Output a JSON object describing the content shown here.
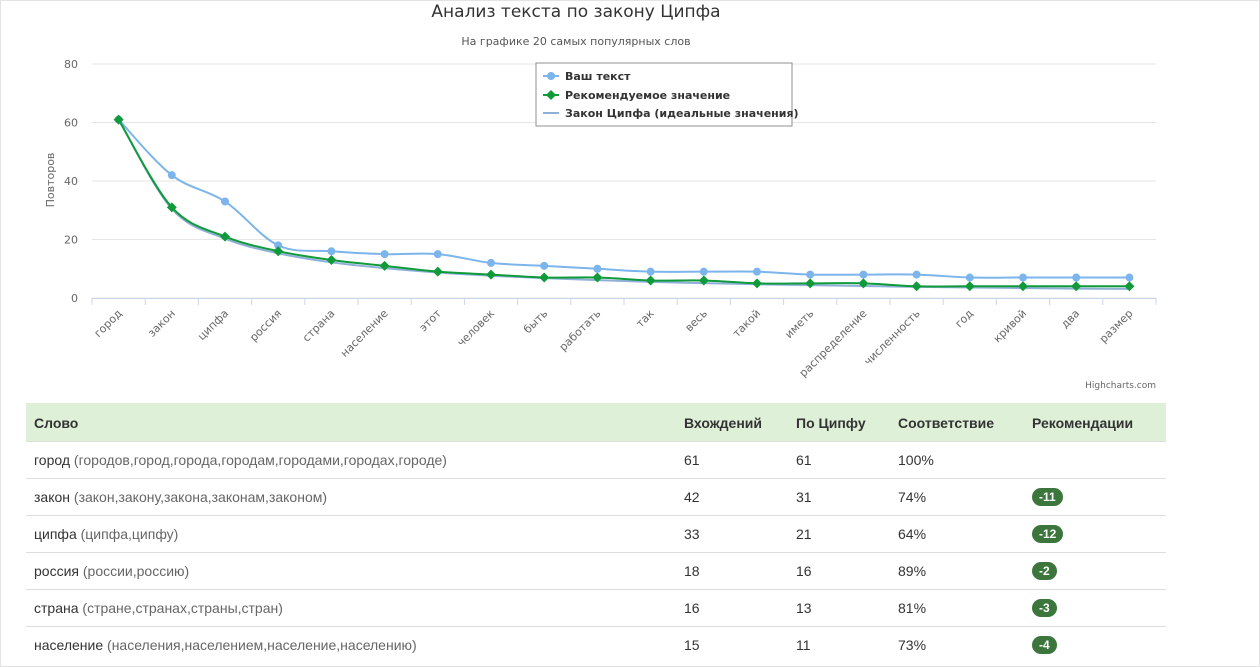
{
  "chart_data": {
    "type": "line",
    "title": "Анализ текста по закону Ципфа",
    "subtitle": "На графике 20 самых популярных слов",
    "ylabel": "Повторов",
    "ylim": [
      0,
      80
    ],
    "yticks": [
      0,
      20,
      40,
      60,
      80
    ],
    "grid": true,
    "legend_position": "top-center",
    "credits": "Highcharts.com",
    "categories": [
      "город",
      "закон",
      "ципфа",
      "россия",
      "страна",
      "население",
      "этот",
      "человек",
      "быть",
      "работать",
      "так",
      "весь",
      "такой",
      "иметь",
      "распределение",
      "численность",
      "год",
      "кривой",
      "два",
      "размер"
    ],
    "series": [
      {
        "name": "Ваш текст",
        "color": "#7cb5ec",
        "marker": "circle",
        "values": [
          61,
          42,
          33,
          18,
          16,
          15,
          15,
          12,
          11,
          10,
          9,
          9,
          9,
          8,
          8,
          8,
          7,
          7,
          7,
          7
        ]
      },
      {
        "name": "Рекомендуемое значение",
        "color": "#109a3a",
        "marker": "diamond",
        "values": [
          61,
          31,
          21,
          16,
          13,
          11,
          9,
          8,
          7,
          7,
          6,
          6,
          5,
          5,
          5,
          4,
          4,
          4,
          4,
          4
        ]
      },
      {
        "name": "Закон Ципфа (идеальные значения)",
        "color": "#8eb0d8",
        "marker": "none",
        "values": [
          61,
          30.5,
          20.3,
          15.3,
          12.2,
          10.2,
          8.7,
          7.6,
          6.8,
          6.1,
          5.5,
          5.1,
          4.7,
          4.4,
          4.1,
          3.8,
          3.6,
          3.4,
          3.2,
          3.1
        ]
      }
    ]
  },
  "table": {
    "headers": {
      "word": "Слово",
      "count": "Вхождений",
      "zipf": "По Ципфу",
      "match": "Соответствие",
      "rec": "Рекомендации"
    },
    "rows": [
      {
        "word": "город",
        "forms": "(городов,город,города,городам,городами,городах,городе)",
        "count": "61",
        "zipf": "61",
        "match": "100%",
        "rec": ""
      },
      {
        "word": "закон",
        "forms": "(закон,закону,закона,законам,законом)",
        "count": "42",
        "zipf": "31",
        "match": "74%",
        "rec": "-11"
      },
      {
        "word": "ципфа",
        "forms": "(ципфа,ципфу)",
        "count": "33",
        "zipf": "21",
        "match": "64%",
        "rec": "-12"
      },
      {
        "word": "россия",
        "forms": "(россии,россию)",
        "count": "18",
        "zipf": "16",
        "match": "89%",
        "rec": "-2"
      },
      {
        "word": "страна",
        "forms": "(стране,странах,страны,стран)",
        "count": "16",
        "zipf": "13",
        "match": "81%",
        "rec": "-3"
      },
      {
        "word": "население",
        "forms": "(населения,населением,население,населению)",
        "count": "15",
        "zipf": "11",
        "match": "73%",
        "rec": "-4"
      }
    ]
  }
}
